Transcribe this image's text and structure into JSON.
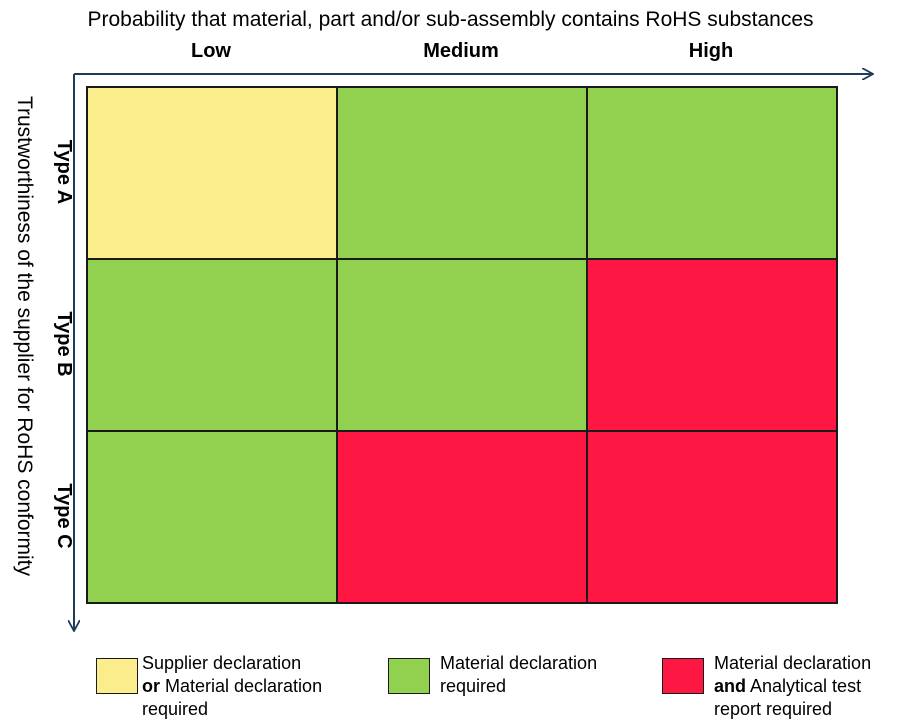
{
  "x_axis": {
    "title": "Probability that material, part and/or sub-assembly contains RoHS substances",
    "columns": [
      "Low",
      "Medium",
      "High"
    ]
  },
  "y_axis": {
    "title": "Trustworthiness of the supplier for RoHS conformity",
    "rows": [
      "Type A",
      "Type B",
      "Type C"
    ]
  },
  "colors": {
    "yellow": "#fbec8c",
    "green": "#92d050",
    "red": "#ff1744",
    "axis": "#1f3b5a"
  },
  "matrix": [
    [
      "yellow",
      "green",
      "green"
    ],
    [
      "green",
      "green",
      "red"
    ],
    [
      "green",
      "red",
      "red"
    ]
  ],
  "legend": [
    {
      "color": "yellow",
      "line1": "Supplier declaration",
      "line2_bold": "or",
      "line2_rest": " Material declaration",
      "line3": "required"
    },
    {
      "color": "green",
      "line1": "Material declaration",
      "line2_bold": "",
      "line2_rest": "required",
      "line3": ""
    },
    {
      "color": "red",
      "line1": "Material declaration",
      "line2_bold": "and",
      "line2_rest": " Analytical test",
      "line3": "report required"
    }
  ]
}
